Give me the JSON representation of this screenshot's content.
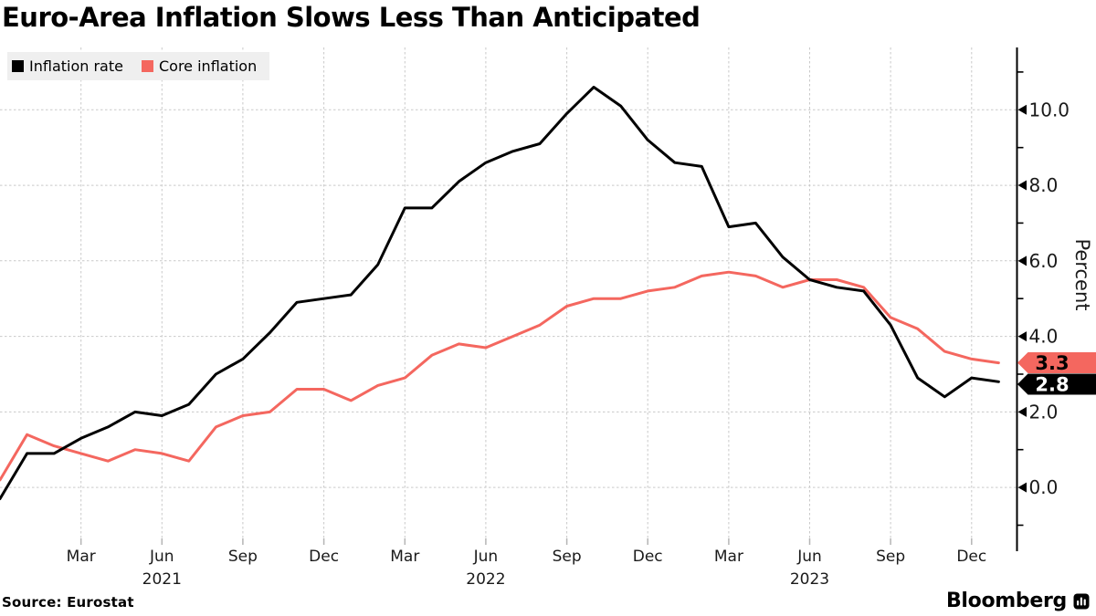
{
  "title": "Euro-Area Inflation Slows Less Than Anticipated",
  "source": "Source: Eurostat",
  "brand": {
    "name": "Bloomberg"
  },
  "legend": [
    {
      "label": "Inflation rate",
      "color": "#000000"
    },
    {
      "label": "Core inflation",
      "color": "#f4675f"
    }
  ],
  "colors": {
    "legend_bg": "#efefef",
    "grid": "#c9c9c9",
    "axis": "#000000",
    "tick_label": "#1a1a1a"
  },
  "chart_data": {
    "type": "line",
    "title": "Euro-Area Inflation Slows Less Than Anticipated",
    "xlabel": "",
    "ylabel": "Percent",
    "grid": "dashed",
    "legend_position": "top-left",
    "y_axis": {
      "side": "right",
      "range": [
        -1.35,
        11.65
      ],
      "major_ticks": [
        {
          "value": 0,
          "label": "0.0"
        },
        {
          "value": 2,
          "label": "2.0"
        },
        {
          "value": 4,
          "label": "4.0"
        },
        {
          "value": 6,
          "label": "6.0"
        },
        {
          "value": 8,
          "label": "8.0"
        },
        {
          "value": 10,
          "label": "10.0"
        }
      ],
      "minor_tick_values": [
        -1,
        1,
        3,
        5,
        7,
        9,
        11
      ]
    },
    "x_axis": {
      "note": "monthly points, index 0 = first plotted month (Dec 2020)",
      "ticks": [
        {
          "m": 3,
          "label": "Mar"
        },
        {
          "m": 6,
          "label": "Jun",
          "year": "2021"
        },
        {
          "m": 9,
          "label": "Sep"
        },
        {
          "m": 12,
          "label": "Dec"
        },
        {
          "m": 15,
          "label": "Mar"
        },
        {
          "m": 18,
          "label": "Jun",
          "year": "2022"
        },
        {
          "m": 21,
          "label": "Sep"
        },
        {
          "m": 24,
          "label": "Dec"
        },
        {
          "m": 27,
          "label": "Mar"
        },
        {
          "m": 30,
          "label": "Jun",
          "year": "2023"
        },
        {
          "m": 33,
          "label": "Sep"
        },
        {
          "m": 36,
          "label": "Dec"
        }
      ]
    },
    "series": [
      {
        "name": "Core inflation",
        "color": "#f4675f",
        "end_label": "3.3",
        "end_label_text_color": "#000000",
        "values": [
          0.2,
          1.4,
          1.1,
          0.9,
          0.7,
          1.0,
          0.9,
          0.7,
          1.6,
          1.9,
          2.0,
          2.6,
          2.6,
          2.3,
          2.7,
          2.9,
          3.5,
          3.8,
          3.7,
          4.0,
          4.3,
          4.8,
          5.0,
          5.0,
          5.2,
          5.3,
          5.6,
          5.7,
          5.6,
          5.3,
          5.5,
          5.5,
          5.3,
          4.5,
          4.2,
          3.6,
          3.4,
          3.3
        ]
      },
      {
        "name": "Inflation rate",
        "color": "#000000",
        "end_label": "2.8",
        "end_label_text_color": "#ffffff",
        "values": [
          -0.3,
          0.9,
          0.9,
          1.3,
          1.6,
          2.0,
          1.9,
          2.2,
          3.0,
          3.4,
          4.1,
          4.9,
          5.0,
          5.1,
          5.9,
          7.4,
          7.4,
          8.1,
          8.6,
          8.9,
          9.1,
          9.9,
          10.6,
          10.1,
          9.2,
          8.6,
          8.5,
          6.9,
          7.0,
          6.1,
          5.5,
          5.3,
          5.2,
          4.3,
          2.9,
          2.4,
          2.9,
          2.8
        ]
      }
    ]
  }
}
